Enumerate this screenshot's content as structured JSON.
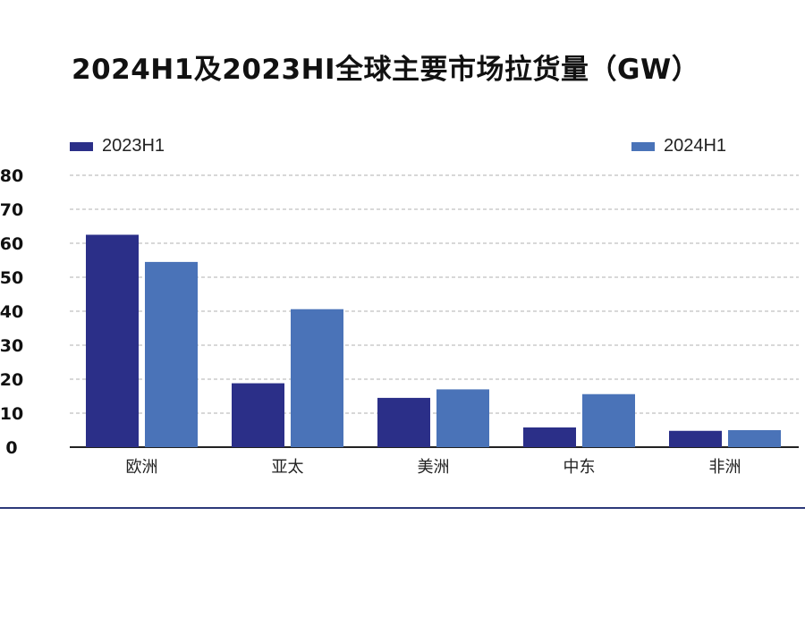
{
  "title": "2024H1及2023HI全球主要市场拉货量（GW）",
  "colors": {
    "series_2023": "#2b2f88",
    "series_2024": "#4a73b8",
    "grid": "#b0b0b0",
    "axis": "#222222",
    "divider": "#2d3a7a"
  },
  "chart_data": {
    "type": "bar",
    "title": "2024H1及2023HI全球主要市场拉货量（GW）",
    "categories": [
      "欧洲",
      "亚太",
      "美洲",
      "中东",
      "非洲"
    ],
    "series": [
      {
        "name": "2023H1",
        "values": [
          62.5,
          18.8,
          14.5,
          5.8,
          4.8
        ]
      },
      {
        "name": "2024H1",
        "values": [
          54.5,
          40.6,
          17.0,
          15.6,
          5.0
        ]
      }
    ],
    "yticks": [
      0,
      10,
      20,
      30,
      40,
      50,
      60,
      70,
      80
    ],
    "ytick_labels": [
      "0",
      "10",
      "20",
      "30",
      "40",
      "50",
      "60",
      "70",
      "80"
    ],
    "ylim": [
      0,
      80
    ],
    "xlabel": "",
    "ylabel": "",
    "grid": true,
    "legend_position": "top"
  }
}
